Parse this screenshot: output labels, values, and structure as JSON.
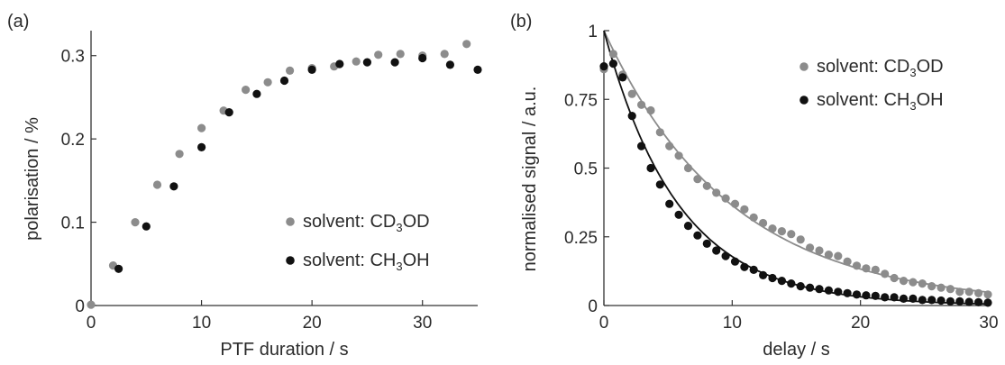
{
  "colors": {
    "grey": "#8c8c8c",
    "black": "#111111",
    "axis": "#333333"
  },
  "chart_data": [
    {
      "panel_label": "(a)",
      "type": "scatter",
      "xlabel": "PTF duration / s",
      "ylabel": "polarisation / %",
      "xlim": [
        0,
        35
      ],
      "ylim": [
        0,
        0.33
      ],
      "xticks": [
        0,
        10,
        20,
        30
      ],
      "xtick_labels": [
        "0",
        "10",
        "20",
        "30"
      ],
      "yticks": [
        0,
        0.1,
        0.2,
        0.3
      ],
      "ytick_labels": [
        "0",
        "0.1",
        "0.2",
        "0.3"
      ],
      "grid": false,
      "legend_position": "lower-right",
      "series": [
        {
          "name": "solvent: CD3OD",
          "name_base": "solvent: CD",
          "name_sub": "3",
          "name_tail": "OD",
          "color": "#8c8c8c",
          "x": [
            0,
            2,
            4,
            6,
            8,
            10,
            12,
            14,
            16,
            18,
            20,
            22,
            24,
            26,
            28,
            30,
            32,
            34
          ],
          "y": [
            0.001,
            0.048,
            0.1,
            0.145,
            0.182,
            0.213,
            0.234,
            0.259,
            0.268,
            0.282,
            0.285,
            0.287,
            0.293,
            0.301,
            0.302,
            0.3,
            0.302,
            0.314
          ]
        },
        {
          "name": "solvent: CH3OH",
          "name_base": "solvent: CH",
          "name_sub": "3",
          "name_tail": "OH",
          "color": "#111111",
          "x": [
            2.5,
            5,
            7.5,
            10,
            12.5,
            15,
            17.5,
            20,
            22.5,
            25,
            27.5,
            30,
            32.5,
            35
          ],
          "y": [
            0.044,
            0.095,
            0.143,
            0.19,
            0.232,
            0.254,
            0.27,
            0.283,
            0.29,
            0.292,
            0.292,
            0.297,
            0.289,
            0.283
          ]
        }
      ]
    },
    {
      "panel_label": "(b)",
      "type": "scatter",
      "xlabel": "delay / s",
      "ylabel": "normalised signal / a.u.",
      "xlim": [
        0,
        30
      ],
      "ylim": [
        0,
        1
      ],
      "xticks": [
        0,
        10,
        20,
        30
      ],
      "xtick_labels": [
        "0",
        "10",
        "20",
        "30"
      ],
      "yticks": [
        0,
        0.25,
        0.5,
        0.75,
        1
      ],
      "ytick_labels": [
        "0",
        "0.25",
        "0.5",
        "0.75",
        "1"
      ],
      "grid": false,
      "legend_position": "top-right",
      "series": [
        {
          "name": "solvent: CD3OD",
          "name_base": "solvent: CD",
          "name_sub": "3",
          "name_tail": "OD",
          "color": "#8c8c8c",
          "x": [
            0,
            0.73,
            1.46,
            2.19,
            2.92,
            3.65,
            4.38,
            5.11,
            5.84,
            6.57,
            7.3,
            8.03,
            8.76,
            9.49,
            10.22,
            10.95,
            11.68,
            12.41,
            13.14,
            13.87,
            14.6,
            15.33,
            16.06,
            16.79,
            17.52,
            18.25,
            18.98,
            19.71,
            20.44,
            21.17,
            21.9,
            22.63,
            23.36,
            24.09,
            24.82,
            25.55,
            26.28,
            27.01,
            27.74,
            28.47,
            29.2,
            29.93
          ],
          "y": [
            0.86,
            0.915,
            0.84,
            0.77,
            0.73,
            0.71,
            0.63,
            0.58,
            0.545,
            0.5,
            0.46,
            0.435,
            0.41,
            0.39,
            0.37,
            0.35,
            0.32,
            0.3,
            0.28,
            0.27,
            0.26,
            0.24,
            0.21,
            0.2,
            0.185,
            0.18,
            0.16,
            0.145,
            0.135,
            0.13,
            0.115,
            0.1,
            0.09,
            0.085,
            0.08,
            0.07,
            0.065,
            0.06,
            0.05,
            0.05,
            0.045,
            0.04
          ],
          "fit": {
            "a": 1.0,
            "tau": 9.9
          }
        },
        {
          "name": "solvent: CH3OH",
          "name_base": "solvent: CH",
          "name_sub": "3",
          "name_tail": "OH",
          "color": "#111111",
          "x": [
            0,
            0.73,
            1.46,
            2.19,
            2.92,
            3.65,
            4.38,
            5.11,
            5.84,
            6.57,
            7.3,
            8.03,
            8.76,
            9.49,
            10.22,
            10.95,
            11.68,
            12.41,
            13.14,
            13.87,
            14.6,
            15.33,
            16.06,
            16.79,
            17.52,
            18.25,
            18.98,
            19.71,
            20.44,
            21.17,
            21.9,
            22.63,
            23.36,
            24.09,
            24.82,
            25.55,
            26.28,
            27.01,
            27.74,
            28.47,
            29.2,
            29.93
          ],
          "y": [
            0.87,
            0.88,
            0.83,
            0.69,
            0.58,
            0.5,
            0.44,
            0.37,
            0.33,
            0.29,
            0.255,
            0.225,
            0.2,
            0.18,
            0.16,
            0.14,
            0.13,
            0.11,
            0.1,
            0.09,
            0.08,
            0.07,
            0.065,
            0.06,
            0.055,
            0.05,
            0.045,
            0.04,
            0.037,
            0.035,
            0.03,
            0.03,
            0.025,
            0.025,
            0.02,
            0.02,
            0.018,
            0.015,
            0.015,
            0.013,
            0.012,
            0.01
          ],
          "fit": {
            "a": 1.0,
            "tau": 5.8
          }
        }
      ]
    }
  ]
}
